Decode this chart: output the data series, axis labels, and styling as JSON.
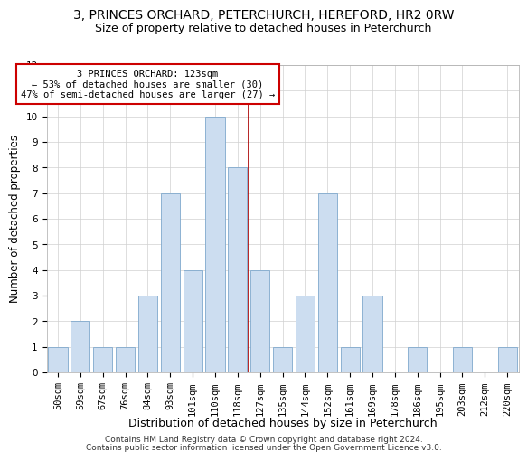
{
  "title": "3, PRINCES ORCHARD, PETERCHURCH, HEREFORD, HR2 0RW",
  "subtitle": "Size of property relative to detached houses in Peterchurch",
  "xlabel": "Distribution of detached houses by size in Peterchurch",
  "ylabel": "Number of detached properties",
  "categories": [
    "50sqm",
    "59sqm",
    "67sqm",
    "76sqm",
    "84sqm",
    "93sqm",
    "101sqm",
    "110sqm",
    "118sqm",
    "127sqm",
    "135sqm",
    "144sqm",
    "152sqm",
    "161sqm",
    "169sqm",
    "178sqm",
    "186sqm",
    "195sqm",
    "203sqm",
    "212sqm",
    "220sqm"
  ],
  "values": [
    1,
    2,
    1,
    1,
    3,
    7,
    4,
    10,
    8,
    4,
    1,
    3,
    7,
    1,
    3,
    0,
    1,
    0,
    1,
    0,
    1
  ],
  "bar_color": "#ccddf0",
  "bar_edgecolor": "#7fa8cc",
  "grid_color": "#d0d0d0",
  "vline_x": 8.5,
  "vline_color": "#aa0000",
  "annotation_text": "3 PRINCES ORCHARD: 123sqm\n← 53% of detached houses are smaller (30)\n47% of semi-detached houses are larger (27) →",
  "annotation_box_color": "#cc0000",
  "annotation_bg": "#ffffff",
  "ylim": [
    0,
    12
  ],
  "yticks": [
    0,
    1,
    2,
    3,
    4,
    5,
    6,
    7,
    8,
    9,
    10,
    11,
    12
  ],
  "footer1": "Contains HM Land Registry data © Crown copyright and database right 2024.",
  "footer2": "Contains public sector information licensed under the Open Government Licence v3.0.",
  "title_fontsize": 10,
  "subtitle_fontsize": 9,
  "ylabel_fontsize": 8.5,
  "xlabel_fontsize": 9,
  "tick_fontsize": 7.5,
  "annotation_fontsize": 7.5,
  "footer_fontsize": 6.5
}
